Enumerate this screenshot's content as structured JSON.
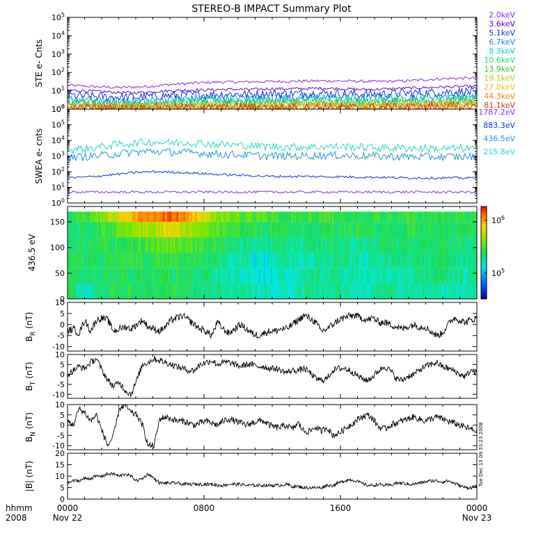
{
  "title": "STEREO-B IMPACT Summary Plot",
  "time_axis": {
    "row1_labels": [
      "0000",
      "0800",
      "1600",
      "0000"
    ],
    "row2_labels": [
      "Nov 22",
      "Nov 23"
    ],
    "left_row1": "hhmm",
    "left_row2": "2008",
    "hours": [
      0,
      8,
      16,
      24
    ]
  },
  "side_stamp": "Tue Dec 13 09:33:23 2008",
  "colors": {
    "ste": [
      "#8a2be2",
      "#6a00d0",
      "#1030e0",
      "#1a86e0",
      "#10c8c8",
      "#18d86a",
      "#30c030",
      "#b8c820",
      "#e8c020",
      "#f08a00",
      "#e03010"
    ],
    "swea": [
      "#8a2be2",
      "#1030e0",
      "#1a96e0",
      "#20d6c8"
    ],
    "mag_line": "#000000"
  },
  "chart_data": [
    {
      "type": "line",
      "panel": "ste",
      "ylabel": "STE e- Cnts",
      "log_y": true,
      "ylim": [
        1,
        100000
      ],
      "yticks": [
        "10^0",
        "10^1",
        "10^2",
        "10^3",
        "10^4",
        "10^5"
      ],
      "legend_position": "right",
      "series": [
        {
          "name": "2.0keV",
          "values": [
            20,
            18,
            16,
            15,
            16,
            18,
            22,
            25,
            28,
            30,
            30,
            31,
            32,
            33,
            34,
            35,
            34,
            33,
            32,
            33,
            35,
            40,
            45,
            48,
            50
          ]
        },
        {
          "name": "3.6keV",
          "values": [
            11,
            10,
            9,
            8,
            8,
            9,
            10,
            11,
            11,
            12,
            12,
            12,
            13,
            13,
            13,
            14,
            13,
            12,
            12,
            13,
            14,
            15,
            16,
            17,
            17
          ]
        },
        {
          "name": "5.1keV",
          "values": [
            5.5,
            5,
            4.8,
            4.5,
            4.5,
            5,
            5.5,
            6,
            6,
            6.5,
            6.5,
            6.5,
            7,
            7,
            7,
            7.5,
            7,
            6.5,
            6.5,
            7,
            7.5,
            8,
            8.5,
            9,
            9
          ]
        },
        {
          "name": "6.7keV",
          "values": [
            3.5,
            3.2,
            3,
            2.8,
            2.8,
            3,
            3.4,
            3.6,
            3.8,
            4,
            4,
            4,
            4.2,
            4.2,
            4.3,
            4.5,
            4.2,
            4,
            4,
            4.2,
            4.5,
            5,
            5.2,
            5.5,
            5.5
          ]
        },
        {
          "name": "8.3keV",
          "values": [
            2.6,
            2.4,
            2.3,
            2.2,
            2.2,
            2.3,
            2.5,
            2.7,
            2.8,
            3,
            3,
            3,
            3.1,
            3.1,
            3.2,
            3.3,
            3.1,
            3,
            3,
            3.1,
            3.3,
            3.6,
            3.8,
            4,
            4
          ]
        },
        {
          "name": "10.6keV",
          "values": [
            2,
            1.9,
            1.8,
            1.8,
            1.8,
            1.9,
            2,
            2.1,
            2.2,
            2.3,
            2.3,
            2.3,
            2.4,
            2.4,
            2.4,
            2.5,
            2.4,
            2.3,
            2.3,
            2.4,
            2.5,
            2.7,
            2.8,
            3,
            3
          ]
        },
        {
          "name": "13.9keV",
          "values": [
            1.7,
            1.6,
            1.6,
            1.5,
            1.5,
            1.6,
            1.7,
            1.8,
            1.8,
            1.9,
            1.9,
            1.9,
            2,
            2,
            2,
            2.1,
            2,
            1.9,
            1.9,
            2,
            2.1,
            2.2,
            2.3,
            2.4,
            2.4
          ]
        },
        {
          "name": "19.1keV",
          "values": [
            1.5,
            1.45,
            1.4,
            1.4,
            1.4,
            1.45,
            1.5,
            1.55,
            1.6,
            1.65,
            1.65,
            1.65,
            1.7,
            1.7,
            1.7,
            1.75,
            1.7,
            1.65,
            1.65,
            1.7,
            1.75,
            1.85,
            1.9,
            2,
            2
          ]
        },
        {
          "name": "27.8keV",
          "values": [
            1.35,
            1.3,
            1.3,
            1.25,
            1.25,
            1.3,
            1.35,
            1.4,
            1.4,
            1.45,
            1.45,
            1.45,
            1.5,
            1.5,
            1.5,
            1.55,
            1.5,
            1.45,
            1.45,
            1.5,
            1.55,
            1.6,
            1.65,
            1.7,
            1.7
          ]
        },
        {
          "name": "44.3keV",
          "values": [
            1.2,
            1.2,
            1.15,
            1.15,
            1.15,
            1.2,
            1.2,
            1.25,
            1.25,
            1.3,
            1.3,
            1.3,
            1.3,
            1.3,
            1.3,
            1.35,
            1.3,
            1.3,
            1.3,
            1.3,
            1.35,
            1.4,
            1.45,
            1.5,
            1.5
          ]
        },
        {
          "name": "81.1keV",
          "values": [
            1.1,
            1.1,
            1.1,
            1.05,
            1.05,
            1.1,
            1.1,
            1.15,
            1.15,
            1.2,
            1.2,
            1.2,
            1.2,
            1.2,
            1.2,
            1.25,
            1.2,
            1.2,
            1.2,
            1.2,
            1.25,
            1.3,
            1.3,
            1.35,
            1.35
          ]
        }
      ]
    },
    {
      "type": "line",
      "panel": "swea",
      "ylabel": "SWEA e- cnts",
      "log_y": true,
      "ylim": [
        1,
        1000000
      ],
      "yticks": [
        "10^0",
        "10^1",
        "10^2",
        "10^3",
        "10^4",
        "10^5",
        "10^6"
      ],
      "legend_position": "right",
      "series": [
        {
          "name": "1787.2eV",
          "values": [
            5,
            5,
            5,
            5,
            5,
            5,
            5,
            5,
            5,
            5,
            5,
            5,
            5,
            5,
            5,
            5,
            5,
            5,
            5,
            5,
            5,
            5,
            5,
            5,
            5
          ]
        },
        {
          "name": "883.3eV",
          "values": [
            40,
            45,
            55,
            70,
            90,
            100,
            95,
            85,
            75,
            65,
            60,
            55,
            50,
            50,
            50,
            48,
            48,
            45,
            45,
            42,
            40,
            40,
            40,
            40,
            40
          ]
        },
        {
          "name": "436.5eV",
          "values": [
            800,
            900,
            1100,
            1400,
            1800,
            2000,
            1800,
            1700,
            1500,
            1300,
            1200,
            1100,
            1000,
            1000,
            1050,
            1100,
            1100,
            1050,
            1000,
            950,
            900,
            900,
            900,
            900,
            950
          ]
        },
        {
          "name": "215.8eV",
          "values": [
            2500,
            3000,
            4000,
            5500,
            7000,
            8000,
            7000,
            7500,
            6500,
            5500,
            5000,
            4500,
            4000,
            3800,
            3800,
            4000,
            4000,
            3800,
            3500,
            3300,
            3200,
            3100,
            3000,
            3000,
            3000
          ]
        }
      ]
    },
    {
      "type": "heatmap",
      "panel": "pitch_angle",
      "ylabel": "436.5 eV",
      "ylim": [
        0,
        180
      ],
      "yticks": [
        "0",
        "50",
        "100",
        "150"
      ],
      "colorbar": {
        "ticks": [
          "10^5",
          "10^6"
        ],
        "position": "right"
      },
      "row_bands_deg": [
        0,
        30,
        60,
        90,
        120,
        150,
        170
      ],
      "time_hours": [
        0,
        1,
        2,
        3,
        4,
        5,
        6,
        7,
        8,
        9,
        10,
        11,
        12,
        13,
        14,
        15,
        16,
        17,
        18,
        19,
        20,
        21,
        22,
        23
      ],
      "values": [
        [
          0.5,
          0.52,
          0.52,
          0.5,
          0.48,
          0.48
        ],
        [
          0.35,
          0.45,
          0.5,
          0.48,
          0.5,
          0.55
        ],
        [
          0.5,
          0.5,
          0.5,
          0.5,
          0.55,
          0.65
        ],
        [
          0.5,
          0.5,
          0.5,
          0.52,
          0.6,
          0.78
        ],
        [
          0.5,
          0.5,
          0.52,
          0.55,
          0.65,
          0.85
        ],
        [
          0.52,
          0.5,
          0.52,
          0.58,
          0.72,
          0.9
        ],
        [
          0.5,
          0.5,
          0.52,
          0.6,
          0.75,
          0.92
        ],
        [
          0.48,
          0.48,
          0.5,
          0.58,
          0.7,
          0.82
        ],
        [
          0.45,
          0.45,
          0.48,
          0.52,
          0.6,
          0.7
        ],
        [
          0.45,
          0.42,
          0.42,
          0.48,
          0.55,
          0.62
        ],
        [
          0.42,
          0.38,
          0.4,
          0.45,
          0.52,
          0.6
        ],
        [
          0.4,
          0.35,
          0.35,
          0.42,
          0.5,
          0.58
        ],
        [
          0.4,
          0.38,
          0.4,
          0.45,
          0.5,
          0.55
        ],
        [
          0.42,
          0.4,
          0.42,
          0.45,
          0.5,
          0.52
        ],
        [
          0.45,
          0.42,
          0.42,
          0.45,
          0.5,
          0.55
        ],
        [
          0.45,
          0.45,
          0.45,
          0.48,
          0.5,
          0.55
        ],
        [
          0.42,
          0.42,
          0.42,
          0.45,
          0.5,
          0.52
        ],
        [
          0.42,
          0.4,
          0.42,
          0.45,
          0.48,
          0.52
        ],
        [
          0.45,
          0.42,
          0.45,
          0.48,
          0.5,
          0.52
        ],
        [
          0.42,
          0.42,
          0.45,
          0.48,
          0.5,
          0.52
        ],
        [
          0.42,
          0.45,
          0.45,
          0.48,
          0.5,
          0.52
        ],
        [
          0.42,
          0.45,
          0.48,
          0.48,
          0.5,
          0.52
        ],
        [
          0.4,
          0.42,
          0.45,
          0.48,
          0.5,
          0.5
        ],
        [
          0.42,
          0.45,
          0.48,
          0.48,
          0.5,
          0.5
        ]
      ]
    },
    {
      "type": "line",
      "panel": "br",
      "ylabel": "B_R (nT)",
      "ylim": [
        -12,
        10
      ],
      "yticks": [
        "-10",
        "-5",
        "0",
        "5",
        "10"
      ],
      "values": [
        -3,
        -2,
        -4,
        2,
        -3,
        2,
        3,
        2,
        -3,
        -2,
        -1,
        -2,
        0,
        2,
        -1,
        -2,
        -3,
        -1,
        2,
        3,
        4,
        2,
        0,
        -2,
        -3,
        -5,
        1,
        -2,
        -4,
        -2,
        0,
        -2,
        -4,
        -5,
        -4,
        -3,
        -3,
        -2,
        -2,
        0,
        2,
        4,
        3,
        1,
        -3,
        -2,
        0,
        2,
        3,
        4,
        4,
        3,
        2,
        3,
        1,
        1,
        0,
        -1,
        -2,
        -1,
        0,
        -1,
        -1,
        -3,
        -5,
        -4,
        0,
        3,
        2,
        1,
        2,
        3
      ]
    },
    {
      "type": "line",
      "panel": "bt",
      "ylabel": "B_T (nT)",
      "ylim": [
        -12,
        10
      ],
      "yticks": [
        "-10",
        "-5",
        "0",
        "5",
        "10"
      ],
      "values": [
        0,
        2,
        4,
        3,
        6,
        8,
        2,
        -3,
        -6,
        -4,
        -8,
        -10,
        -3,
        5,
        6,
        8,
        7,
        6,
        5,
        4,
        3,
        2,
        2,
        5,
        6,
        7,
        5,
        6,
        6,
        5,
        4,
        5,
        5,
        4,
        4,
        3,
        3,
        2,
        1,
        2,
        2,
        3,
        1,
        -2,
        -3,
        -2,
        2,
        3,
        3,
        2,
        0,
        -2,
        -3,
        -1,
        2,
        4,
        2,
        -2,
        -3,
        -1,
        0,
        2,
        4,
        5,
        6,
        4,
        3,
        2,
        0,
        -1,
        2,
        1
      ]
    },
    {
      "type": "line",
      "panel": "bn",
      "ylabel": "B_N (nT)",
      "ylim": [
        -12,
        10
      ],
      "yticks": [
        "-10",
        "-5",
        "0",
        "5",
        "10"
      ],
      "values": [
        2,
        0,
        8,
        6,
        2,
        5,
        -3,
        -10,
        -5,
        8,
        10,
        6,
        5,
        0,
        -10,
        -10,
        3,
        4,
        3,
        2,
        2,
        1,
        0,
        1,
        2,
        1,
        0,
        2,
        3,
        2,
        1,
        0,
        1,
        2,
        2,
        0,
        -1,
        -1,
        0,
        -2,
        1,
        -3,
        -3,
        -1,
        -3,
        -1,
        -5,
        -4,
        -2,
        0,
        2,
        4,
        5,
        3,
        -1,
        -2,
        0,
        1,
        2,
        3,
        4,
        3,
        2,
        3,
        4,
        3,
        2,
        1,
        0,
        -1,
        -2,
        -3
      ]
    },
    {
      "type": "line",
      "panel": "btot",
      "ylabel": "|B| (nT)",
      "ylim": [
        0,
        20
      ],
      "yticks": [
        "0",
        "5",
        "10",
        "15",
        "20"
      ],
      "values": [
        7,
        8,
        8,
        9,
        9,
        10,
        10,
        11,
        11,
        10,
        11,
        10,
        8,
        9,
        11,
        9,
        7,
        7,
        7,
        7,
        6.5,
        6.5,
        6.5,
        6.5,
        6.5,
        6.5,
        6,
        6,
        6.5,
        6.5,
        6.5,
        6,
        6,
        6,
        6,
        6,
        6,
        6,
        6.5,
        5.5,
        5.5,
        5,
        5,
        5,
        5,
        6,
        6,
        7,
        8,
        8.5,
        8,
        7,
        6,
        6,
        6.5,
        6,
        6,
        7,
        7,
        6.5,
        6.5,
        7,
        7.5,
        8,
        8,
        7.5,
        8,
        7,
        6,
        5,
        5,
        6
      ]
    }
  ]
}
